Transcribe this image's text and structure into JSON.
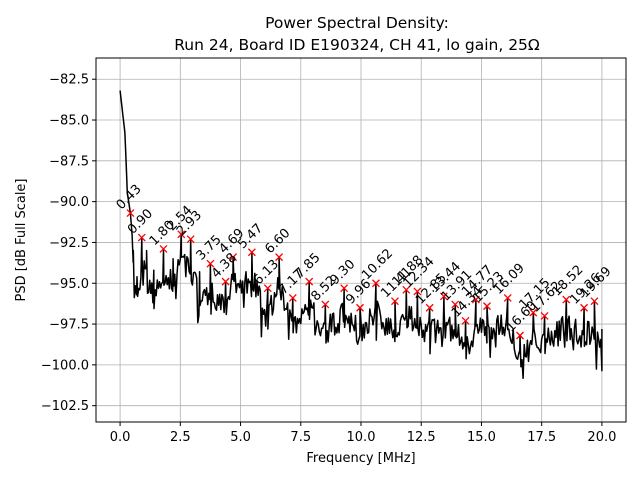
{
  "chart_data": {
    "type": "line",
    "title_line1": "Power Spectral Density:",
    "title_line2": "Run 24, Board ID E190324, CH 41, lo gain, 25Ω",
    "xlabel": "Frequency [MHz]",
    "ylabel": "PSD [dB Full Scale]",
    "xlim": [
      -1.0,
      21.0
    ],
    "ylim": [
      -103.5,
      -81.2
    ],
    "xticks": [
      0.0,
      2.5,
      5.0,
      7.5,
      10.0,
      12.5,
      15.0,
      17.5,
      20.0
    ],
    "xtick_labels": [
      "0.0",
      "2.5",
      "5.0",
      "7.5",
      "10.0",
      "12.5",
      "15.0",
      "17.5",
      "20.0"
    ],
    "yticks": [
      -82.5,
      -85.0,
      -87.5,
      -90.0,
      -92.5,
      -95.0,
      -97.5,
      -100.0,
      -102.5
    ],
    "ytick_labels": [
      "−82.5",
      "−85.0",
      "−87.5",
      "−90.0",
      "−92.5",
      "−95.0",
      "−97.5",
      "−100.0",
      "−102.5"
    ],
    "grid": true,
    "series": [
      {
        "name": "PSD",
        "color": "#000000",
        "anchors": [
          [
            0.0,
            -83.2
          ],
          [
            0.1,
            -84.5
          ],
          [
            0.2,
            -85.8
          ],
          [
            0.3,
            -89.5
          ],
          [
            0.43,
            -90.7
          ],
          [
            0.55,
            -93.0
          ],
          [
            0.7,
            -94.6
          ],
          [
            0.9,
            -92.2
          ],
          [
            1.1,
            -93.0
          ],
          [
            1.4,
            -94.2
          ],
          [
            1.8,
            -92.9
          ],
          [
            2.2,
            -93.5
          ],
          [
            2.54,
            -92.0
          ],
          [
            2.93,
            -92.3
          ],
          [
            3.3,
            -94.3
          ],
          [
            3.75,
            -93.8
          ],
          [
            4.38,
            -94.9
          ],
          [
            4.69,
            -93.4
          ],
          [
            5.47,
            -93.1
          ],
          [
            6.13,
            -95.3
          ],
          [
            6.6,
            -93.4
          ],
          [
            7.17,
            -95.9
          ],
          [
            7.85,
            -94.9
          ],
          [
            8.52,
            -96.3
          ],
          [
            9.3,
            -95.3
          ],
          [
            9.96,
            -96.5
          ],
          [
            10.62,
            -95.0
          ],
          [
            11.41,
            -96.1
          ],
          [
            11.88,
            -95.4
          ],
          [
            12.34,
            -95.5
          ],
          [
            12.85,
            -96.5
          ],
          [
            13.44,
            -95.8
          ],
          [
            13.91,
            -96.3
          ],
          [
            14.34,
            -97.3
          ],
          [
            14.77,
            -96.0
          ],
          [
            15.23,
            -96.4
          ],
          [
            16.09,
            -95.9
          ],
          [
            16.6,
            -98.2
          ],
          [
            17.15,
            -96.8
          ],
          [
            17.62,
            -97.0
          ],
          [
            18.52,
            -96.0
          ],
          [
            19.26,
            -96.5
          ],
          [
            19.69,
            -96.1
          ],
          [
            20.0,
            -97.8
          ]
        ]
      }
    ],
    "peaks": [
      {
        "label": "0.43",
        "x": 0.43,
        "y": -90.7
      },
      {
        "label": "0.90",
        "x": 0.9,
        "y": -92.2
      },
      {
        "label": "1.80",
        "x": 1.8,
        "y": -92.9
      },
      {
        "label": "2.54",
        "x": 2.54,
        "y": -92.0
      },
      {
        "label": "2.93",
        "x": 2.93,
        "y": -92.3
      },
      {
        "label": "3.75",
        "x": 3.75,
        "y": -93.8
      },
      {
        "label": "4.38",
        "x": 4.38,
        "y": -94.9
      },
      {
        "label": "4.69",
        "x": 4.69,
        "y": -93.4
      },
      {
        "label": "5.47",
        "x": 5.47,
        "y": -93.1
      },
      {
        "label": "6.13",
        "x": 6.13,
        "y": -95.3
      },
      {
        "label": "6.60",
        "x": 6.6,
        "y": -93.4
      },
      {
        "label": "7.17",
        "x": 7.17,
        "y": -95.9
      },
      {
        "label": "7.85",
        "x": 7.85,
        "y": -94.9
      },
      {
        "label": "8.52",
        "x": 8.52,
        "y": -96.3
      },
      {
        "label": "9.30",
        "x": 9.3,
        "y": -95.3
      },
      {
        "label": "9.96",
        "x": 9.96,
        "y": -96.5
      },
      {
        "label": "10.62",
        "x": 10.62,
        "y": -95.0
      },
      {
        "label": "11.41",
        "x": 11.41,
        "y": -96.1
      },
      {
        "label": "11.88",
        "x": 11.88,
        "y": -95.4
      },
      {
        "label": "12.34",
        "x": 12.34,
        "y": -95.5
      },
      {
        "label": "12.85",
        "x": 12.85,
        "y": -96.5
      },
      {
        "label": "13.44",
        "x": 13.44,
        "y": -95.8
      },
      {
        "label": "13.91",
        "x": 13.91,
        "y": -96.3
      },
      {
        "label": "14.34",
        "x": 14.34,
        "y": -97.3
      },
      {
        "label": "14.77",
        "x": 14.77,
        "y": -96.0
      },
      {
        "label": "15.23",
        "x": 15.23,
        "y": -96.4
      },
      {
        "label": "16.09",
        "x": 16.09,
        "y": -95.9
      },
      {
        "label": "16.60",
        "x": 16.6,
        "y": -98.2
      },
      {
        "label": "17.15",
        "x": 17.15,
        "y": -96.8
      },
      {
        "label": "17.62",
        "x": 17.62,
        "y": -97.0
      },
      {
        "label": "18.52",
        "x": 18.52,
        "y": -96.0
      },
      {
        "label": "19.26",
        "x": 19.26,
        "y": -96.5
      },
      {
        "label": "19.69",
        "x": 19.69,
        "y": -96.1
      }
    ],
    "marker_color": "#ff0000",
    "marker_symbol": "x"
  }
}
